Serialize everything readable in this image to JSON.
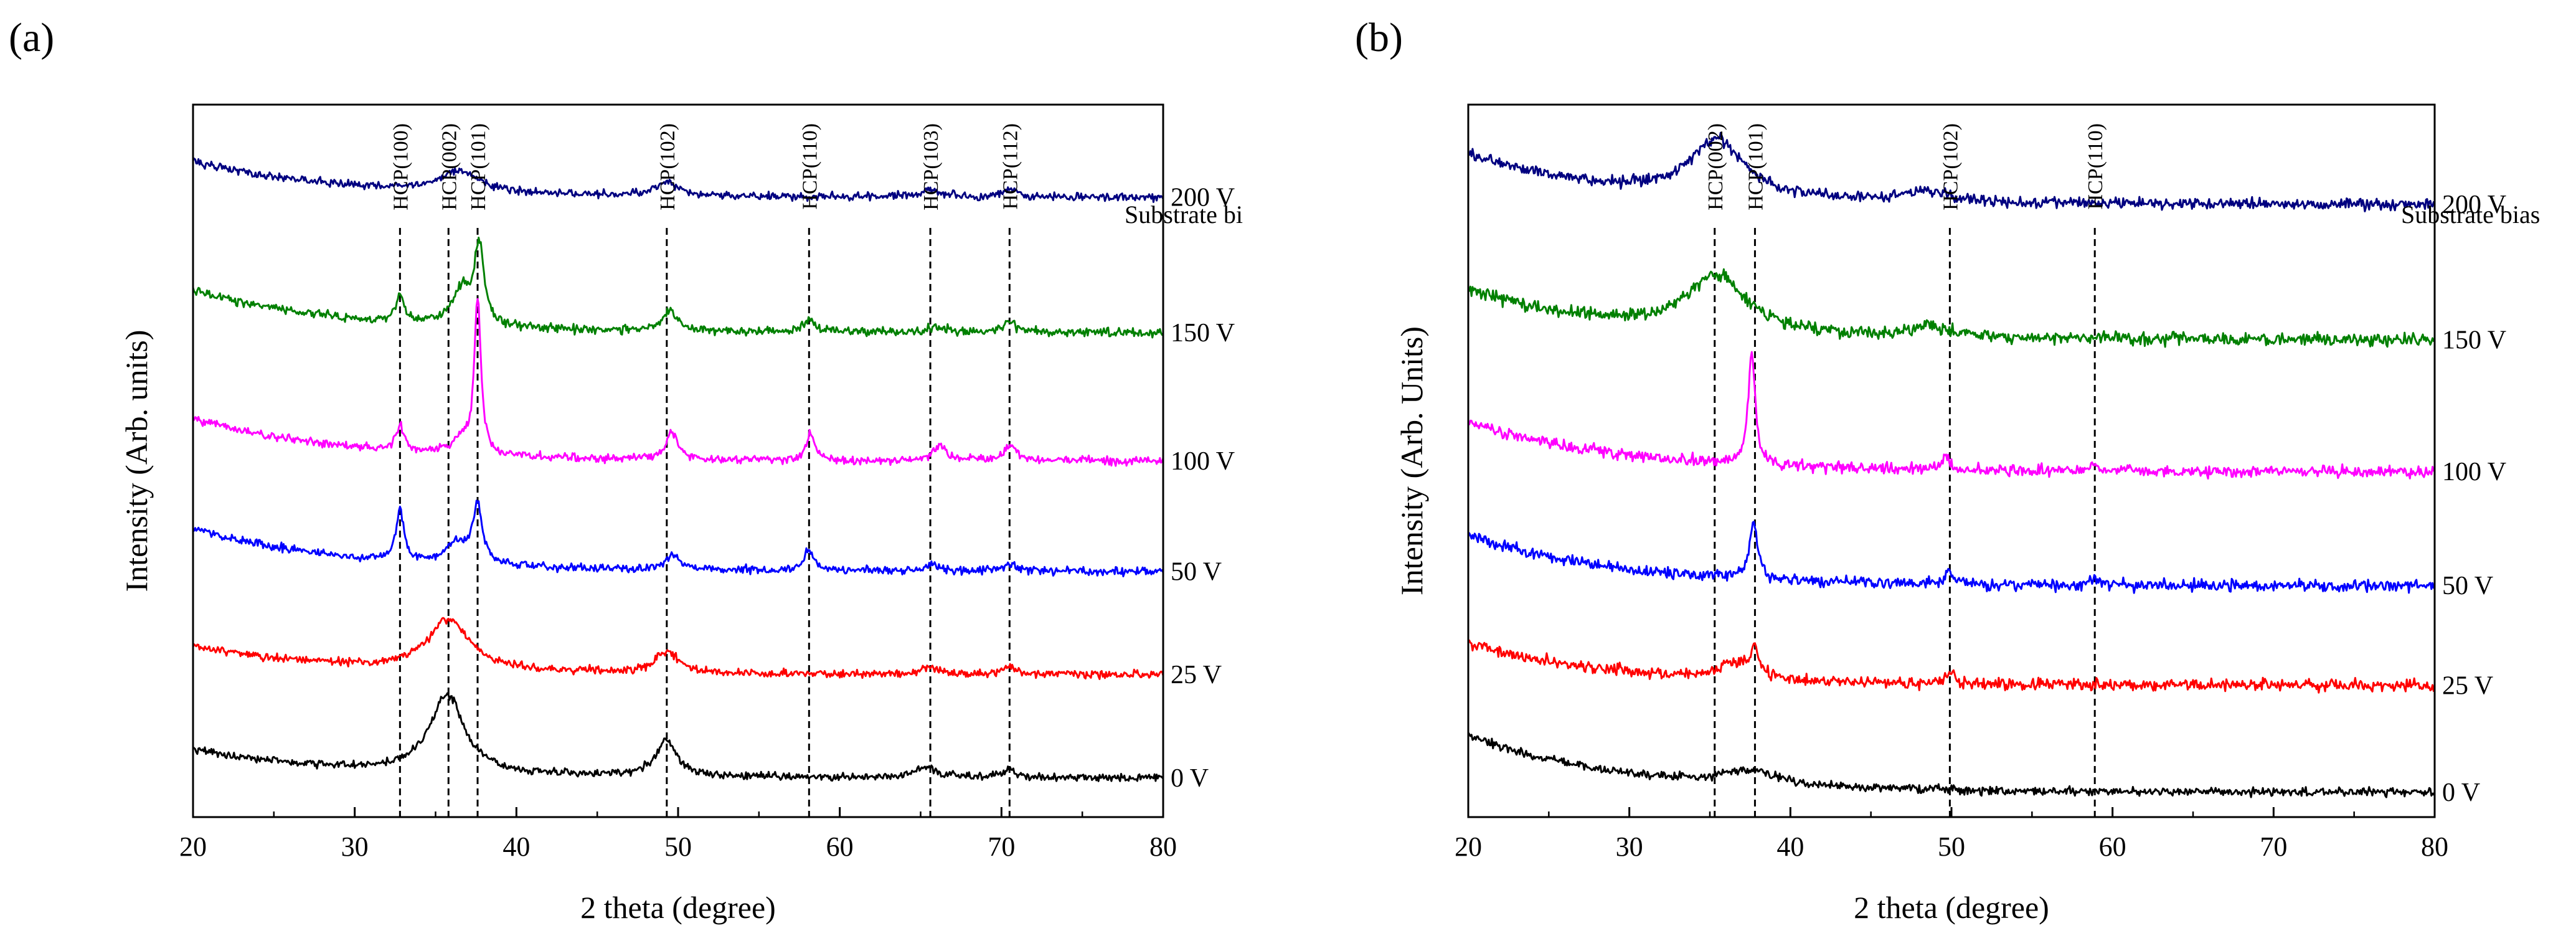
{
  "chart_data": [
    {
      "type": "line",
      "panel_label": "(a)",
      "xlabel": "2 theta (degree)",
      "ylabel": "Intensity (Arb. units)",
      "xlim": [
        20,
        80
      ],
      "ylim": [
        0,
        100
      ],
      "x_ticks": [
        "20",
        "30",
        "40",
        "50",
        "60",
        "70",
        "80"
      ],
      "y_ticks_visible": false,
      "legend_title": "Substrate bi",
      "reference_lines": [
        {
          "x": 32.8,
          "label": "HCP(100)"
        },
        {
          "x": 35.8,
          "label": "HCP(002)"
        },
        {
          "x": 37.6,
          "label": "HCP(101)"
        },
        {
          "x": 49.3,
          "label": "HCP(102)"
        },
        {
          "x": 58.1,
          "label": "HCP(110)"
        },
        {
          "x": 65.6,
          "label": "HCP(103)"
        },
        {
          "x": 70.5,
          "label": "HCP(112)"
        }
      ],
      "series": [
        {
          "name": "0 V",
          "color": "#000000",
          "baseline": 5.5,
          "start_offset": 4,
          "noise": 0.55,
          "peaks": [
            {
              "x": 35.7,
              "h": 11,
              "w": 1.3
            },
            {
              "x": 49.3,
              "h": 5,
              "w": 0.8
            },
            {
              "x": 65.4,
              "h": 1.5,
              "w": 0.8
            },
            {
              "x": 70.5,
              "h": 1.2,
              "w": 0.5
            }
          ]
        },
        {
          "name": "25 V",
          "color": "#ff0000",
          "baseline": 20,
          "start_offset": 4,
          "noise": 0.55,
          "peaks": [
            {
              "x": 35.8,
              "h": 7,
              "w": 1.6
            },
            {
              "x": 49.3,
              "h": 3,
              "w": 0.9
            },
            {
              "x": 65.5,
              "h": 1,
              "w": 0.8
            },
            {
              "x": 70.5,
              "h": 1,
              "w": 0.6
            }
          ]
        },
        {
          "name": "50 V",
          "color": "#0000ff",
          "baseline": 34.5,
          "start_offset": 6,
          "noise": 0.55,
          "peaks": [
            {
              "x": 32.8,
              "h": 7,
              "w": 0.3
            },
            {
              "x": 36.3,
              "h": 3,
              "w": 0.8
            },
            {
              "x": 37.6,
              "h": 8,
              "w": 0.35
            },
            {
              "x": 49.7,
              "h": 2,
              "w": 0.5
            },
            {
              "x": 58.1,
              "h": 3,
              "w": 0.35
            },
            {
              "x": 65.8,
              "h": 1,
              "w": 0.5
            },
            {
              "x": 70.5,
              "h": 1,
              "w": 0.4
            }
          ]
        },
        {
          "name": "100 V",
          "color": "#ff00ff",
          "baseline": 50,
          "start_offset": 6,
          "noise": 0.55,
          "peaks": [
            {
              "x": 32.8,
              "h": 3.5,
              "w": 0.3
            },
            {
              "x": 36.5,
              "h": 2,
              "w": 0.5
            },
            {
              "x": 37.6,
              "h": 22,
              "w": 0.25
            },
            {
              "x": 49.6,
              "h": 4,
              "w": 0.4
            },
            {
              "x": 58.2,
              "h": 4,
              "w": 0.3
            },
            {
              "x": 66.2,
              "h": 2,
              "w": 0.5
            },
            {
              "x": 70.6,
              "h": 2,
              "w": 0.5
            }
          ]
        },
        {
          "name": "150 V",
          "color": "#008000",
          "baseline": 68,
          "start_offset": 6,
          "noise": 0.6,
          "peaks": [
            {
              "x": 32.8,
              "h": 4,
              "w": 0.3
            },
            {
              "x": 36.6,
              "h": 5,
              "w": 0.7
            },
            {
              "x": 37.7,
              "h": 11,
              "w": 0.35
            },
            {
              "x": 49.5,
              "h": 3,
              "w": 0.5
            },
            {
              "x": 58.1,
              "h": 2,
              "w": 0.4
            },
            {
              "x": 66,
              "h": 1,
              "w": 0.5
            },
            {
              "x": 70.5,
              "h": 1.5,
              "w": 0.5
            }
          ]
        },
        {
          "name": "200 V",
          "color": "#000080",
          "baseline": 87,
          "start_offset": 5,
          "noise": 0.55,
          "peaks": [
            {
              "x": 36.5,
              "h": 3,
              "w": 1.5
            },
            {
              "x": 49.3,
              "h": 2,
              "w": 0.8
            },
            {
              "x": 65.5,
              "h": 1,
              "w": 0.8
            },
            {
              "x": 70.5,
              "h": 1,
              "w": 0.6
            }
          ]
        }
      ]
    },
    {
      "type": "line",
      "panel_label": "(b)",
      "xlabel": "2 theta (degree)",
      "ylabel": "Intensity (Arb. Units)",
      "xlim": [
        20,
        80
      ],
      "ylim": [
        0,
        100
      ],
      "x_ticks": [
        "20",
        "30",
        "40",
        "50",
        "60",
        "70",
        "80"
      ],
      "y_ticks_visible": false,
      "legend_title": "Substrate bias",
      "reference_lines": [
        {
          "x": 35.3,
          "label": "HCP(002)"
        },
        {
          "x": 37.8,
          "label": "HCP(101)"
        },
        {
          "x": 49.9,
          "label": "HCP(102)"
        },
        {
          "x": 58.9,
          "label": "HCP(110)"
        }
      ],
      "series": [
        {
          "name": "0 V",
          "color": "#000000",
          "baseline": 3.5,
          "start_offset": 8,
          "noise": 0.6,
          "peaks": [
            {
              "x": 37.5,
              "h": 2,
              "w": 2
            }
          ]
        },
        {
          "name": "25 V",
          "color": "#ff0000",
          "baseline": 18.5,
          "start_offset": 6,
          "noise": 0.8,
          "peaks": [
            {
              "x": 36.5,
              "h": 2,
              "w": 1.2
            },
            {
              "x": 37.8,
              "h": 4,
              "w": 0.3
            },
            {
              "x": 49.9,
              "h": 1.5,
              "w": 0.3
            }
          ]
        },
        {
          "name": "50 V",
          "color": "#0000ff",
          "baseline": 32.5,
          "start_offset": 7,
          "noise": 0.8,
          "peaks": [
            {
              "x": 37.7,
              "h": 8,
              "w": 0.3
            },
            {
              "x": 49.9,
              "h": 2,
              "w": 0.3
            },
            {
              "x": 58.9,
              "h": 1,
              "w": 0.3
            }
          ]
        },
        {
          "name": "100 V",
          "color": "#ff00ff",
          "baseline": 48.5,
          "start_offset": 7,
          "noise": 0.8,
          "peaks": [
            {
              "x": 37.6,
              "h": 16,
              "w": 0.25
            },
            {
              "x": 49.6,
              "h": 2,
              "w": 0.3
            },
            {
              "x": 58.8,
              "h": 1,
              "w": 0.3
            }
          ]
        },
        {
          "name": "150 V",
          "color": "#008000",
          "baseline": 67,
          "start_offset": 7,
          "noise": 0.9,
          "peaks": [
            {
              "x": 35.4,
              "h": 8,
              "w": 2.2
            },
            {
              "x": 48.5,
              "h": 1.5,
              "w": 1.5
            }
          ]
        },
        {
          "name": "200 V",
          "color": "#000080",
          "baseline": 86,
          "start_offset": 7,
          "noise": 0.8,
          "peaks": [
            {
              "x": 35.4,
              "h": 8,
              "w": 2
            },
            {
              "x": 48.5,
              "h": 1.5,
              "w": 1.5
            }
          ]
        }
      ]
    }
  ]
}
